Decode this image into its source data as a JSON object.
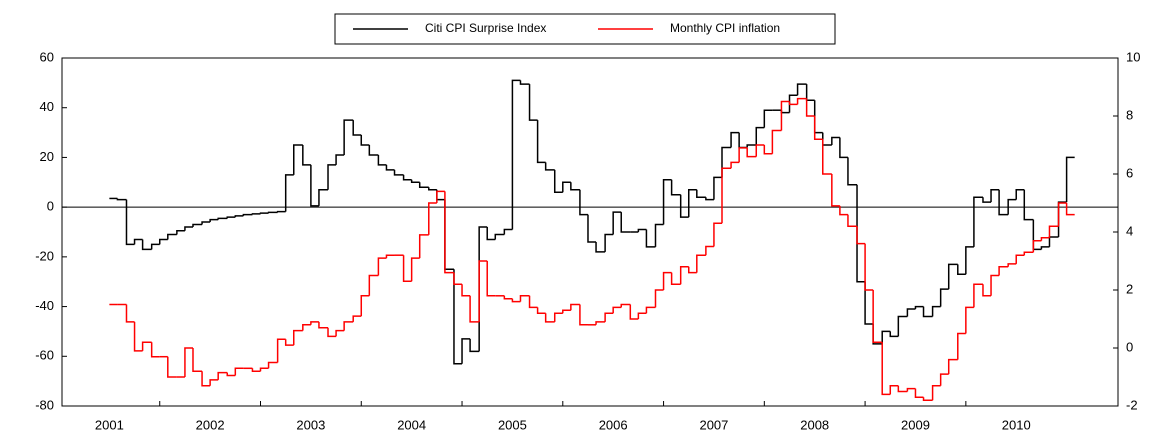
{
  "chart_data": {
    "type": "step-line",
    "x": [
      2001.0,
      2001.08,
      2001.17,
      2001.25,
      2001.33,
      2001.42,
      2001.5,
      2001.58,
      2001.67,
      2001.75,
      2001.83,
      2001.92,
      2002.0,
      2002.08,
      2002.17,
      2002.25,
      2002.33,
      2002.42,
      2002.5,
      2002.58,
      2002.67,
      2002.75,
      2002.83,
      2002.92,
      2003.0,
      2003.08,
      2003.17,
      2003.25,
      2003.33,
      2003.42,
      2003.5,
      2003.58,
      2003.67,
      2003.75,
      2003.83,
      2003.92,
      2004.0,
      2004.08,
      2004.17,
      2004.25,
      2004.33,
      2004.42,
      2004.5,
      2004.58,
      2004.67,
      2004.75,
      2004.83,
      2004.92,
      2005.0,
      2005.08,
      2005.17,
      2005.25,
      2005.33,
      2005.42,
      2005.5,
      2005.58,
      2005.67,
      2005.75,
      2005.83,
      2005.92,
      2006.0,
      2006.08,
      2006.17,
      2006.25,
      2006.33,
      2006.42,
      2006.5,
      2006.58,
      2006.67,
      2006.75,
      2006.83,
      2006.92,
      2007.0,
      2007.08,
      2007.17,
      2007.25,
      2007.33,
      2007.42,
      2007.5,
      2007.58,
      2007.67,
      2007.75,
      2007.83,
      2007.92,
      2008.0,
      2008.08,
      2008.17,
      2008.25,
      2008.33,
      2008.42,
      2008.5,
      2008.58,
      2008.67,
      2008.75,
      2008.83,
      2008.92,
      2009.0,
      2009.08,
      2009.17,
      2009.25,
      2009.33,
      2009.42,
      2009.5,
      2009.58,
      2009.67,
      2009.75,
      2009.83,
      2009.92,
      2010.0,
      2010.08,
      2010.17,
      2010.25,
      2010.33,
      2010.42,
      2010.5
    ],
    "series": [
      {
        "name": "Citi CPI Surprise Index",
        "color": "#000000",
        "axis": "y",
        "values": [
          3.5,
          3,
          -15,
          -13,
          -17,
          -15,
          -13,
          -11,
          -9.5,
          -8,
          -7,
          -6,
          -5,
          -4.5,
          -4,
          -3.5,
          -3,
          -2.7,
          -2.4,
          -2.1,
          -1.8,
          13,
          25,
          17,
          0.5,
          7,
          17,
          21,
          35,
          29,
          25,
          21,
          17,
          15,
          13,
          11,
          10,
          8,
          7,
          3,
          -25,
          -63,
          -53,
          -58,
          -8,
          -13,
          -11,
          -9,
          51,
          49.5,
          35,
          18,
          15,
          6,
          10,
          7,
          -3,
          -14,
          -18,
          -11,
          -2,
          -10,
          -10,
          -9,
          -16,
          -7,
          11,
          5,
          -4,
          7,
          4,
          3,
          12,
          24,
          30,
          24,
          25,
          32,
          39,
          39,
          38,
          45,
          49.5,
          43,
          30,
          25,
          28,
          20,
          9,
          -30,
          -47,
          -55,
          -50,
          -52,
          -44,
          -41,
          -40,
          -44,
          -40,
          -33,
          -23,
          -27,
          -16,
          4,
          2,
          7,
          -3,
          3,
          7,
          -5,
          -17,
          -16,
          -12,
          2,
          20
        ]
      },
      {
        "name": "Monthly CPI inflation",
        "color": "#ff0000",
        "axis": "y2",
        "values": [
          1.5,
          1.5,
          0.9,
          -0.1,
          0.2,
          -0.3,
          -0.3,
          -1.0,
          -1.0,
          0,
          -0.8,
          -1.3,
          -1.1,
          -0.85,
          -0.95,
          -0.7,
          -0.7,
          -0.8,
          -0.7,
          -0.5,
          0.3,
          0.1,
          0.6,
          0.8,
          0.9,
          0.7,
          0.4,
          0.6,
          0.9,
          1.1,
          1.8,
          2.5,
          3.1,
          3.2,
          3.2,
          2.3,
          3.1,
          3.9,
          5.0,
          5.4,
          2.6,
          2.2,
          1.8,
          0.9,
          3.0,
          1.8,
          1.8,
          1.7,
          1.6,
          1.8,
          1.4,
          1.2,
          0.9,
          1.2,
          1.3,
          1.5,
          0.8,
          0.8,
          0.9,
          1.2,
          1.4,
          1.5,
          1.0,
          1.2,
          1.4,
          2.0,
          2.6,
          2.2,
          2.8,
          2.6,
          3.2,
          3.5,
          4.3,
          6.2,
          6.4,
          6.9,
          6.6,
          7.0,
          6.7,
          7.5,
          8.5,
          8.4,
          8.6,
          8.0,
          7.2,
          6.0,
          4.9,
          4.6,
          4.2,
          3.6,
          2.0,
          0.2,
          -1.6,
          -1.3,
          -1.5,
          -1.4,
          -1.7,
          -1.8,
          -1.3,
          -0.9,
          -0.4,
          0.5,
          1.4,
          2.2,
          1.8,
          2.5,
          2.8,
          2.9,
          3.2,
          3.3,
          3.7,
          3.8,
          4.2,
          5.0,
          4.6
        ]
      }
    ],
    "xlim": [
      2000.53,
      2011.01
    ],
    "xticks": [
      2001,
      2002,
      2003,
      2004,
      2005,
      2006,
      2007,
      2008,
      2009,
      2010
    ],
    "ylim": [
      -80,
      60
    ],
    "yticks": [
      -80,
      -60,
      -40,
      -20,
      0,
      20,
      40,
      60
    ],
    "y2lim": [
      -2,
      10
    ],
    "y2ticks": [
      -2,
      0,
      2,
      4,
      6,
      8,
      10
    ],
    "legend": "top",
    "grid": false
  }
}
